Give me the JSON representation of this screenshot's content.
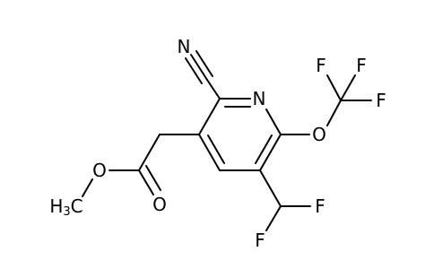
{
  "atoms": {
    "nitrile_n": "N",
    "ring_n": "N",
    "ether_o": "O",
    "f1": "F",
    "f2": "F",
    "f3": "F",
    "ester_o": "O",
    "carbonyl_o": "O",
    "methyl": {
      "h": "H",
      "sub": "3",
      "c": "C"
    },
    "chf2_f1": "F",
    "chf2_f2": "F"
  }
}
